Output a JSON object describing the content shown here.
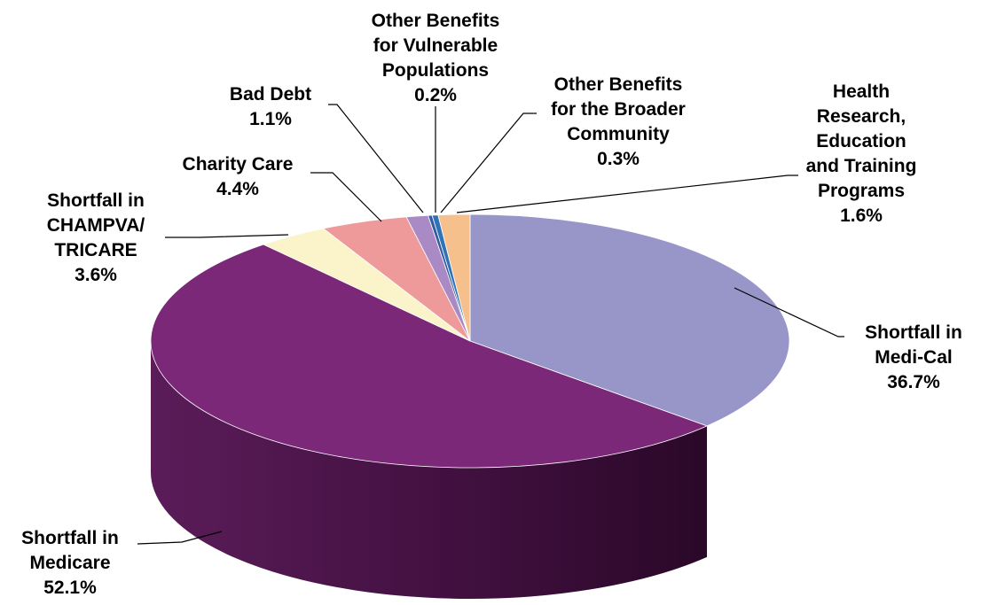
{
  "chart_data": {
    "type": "pie",
    "title": "",
    "three_d": true,
    "legend": "none",
    "slices": [
      {
        "label": "Shortfall in Medi-Cal",
        "lines": [
          "Shortfall in",
          "Medi-Cal",
          "36.7%"
        ],
        "value": 36.7,
        "color": "#9896c9",
        "side": "#4b4a7a"
      },
      {
        "label": "Shortfall in Medicare",
        "lines": [
          "Shortfall in",
          "Medicare",
          "52.1%"
        ],
        "value": 52.1,
        "color": "#7b2878",
        "side": "#4a1448"
      },
      {
        "label": "Shortfall in CHAMPVA/TRICARE",
        "lines": [
          "Shortfall in",
          "CHAMPVA/",
          "TRICARE",
          "3.6%"
        ],
        "value": 3.6,
        "color": "#fbf4cb",
        "side": "#b3ad86"
      },
      {
        "label": "Charity Care",
        "lines": [
          "Charity Care",
          "4.4%"
        ],
        "value": 4.4,
        "color": "#ef9a9a",
        "side": "#a35f5f"
      },
      {
        "label": "Bad Debt",
        "lines": [
          "Bad Debt",
          "1.1%"
        ],
        "value": 1.1,
        "color": "#a98ac4",
        "side": "#6b5586"
      },
      {
        "label": "Other Benefits for Vulnerable Populations",
        "lines": [
          "Other Benefits",
          "for Vulnerable",
          "Populations",
          "0.2%"
        ],
        "value": 0.2,
        "color": "#355c9e",
        "side": "#1f3a68"
      },
      {
        "label": "Other Benefits for the Broader Community",
        "lines": [
          "Other Benefits",
          "for the Broader",
          "Community",
          "0.3%"
        ],
        "value": 0.3,
        "color": "#2e73b8",
        "side": "#1a4a7a"
      },
      {
        "label": "Health Research, Education and Training Programs",
        "lines": [
          "Health",
          "Research,",
          "Education",
          "and Training",
          "Programs",
          "1.6%"
        ],
        "value": 1.6,
        "color": "#f6c08c",
        "side": "#b0835a"
      }
    ]
  }
}
